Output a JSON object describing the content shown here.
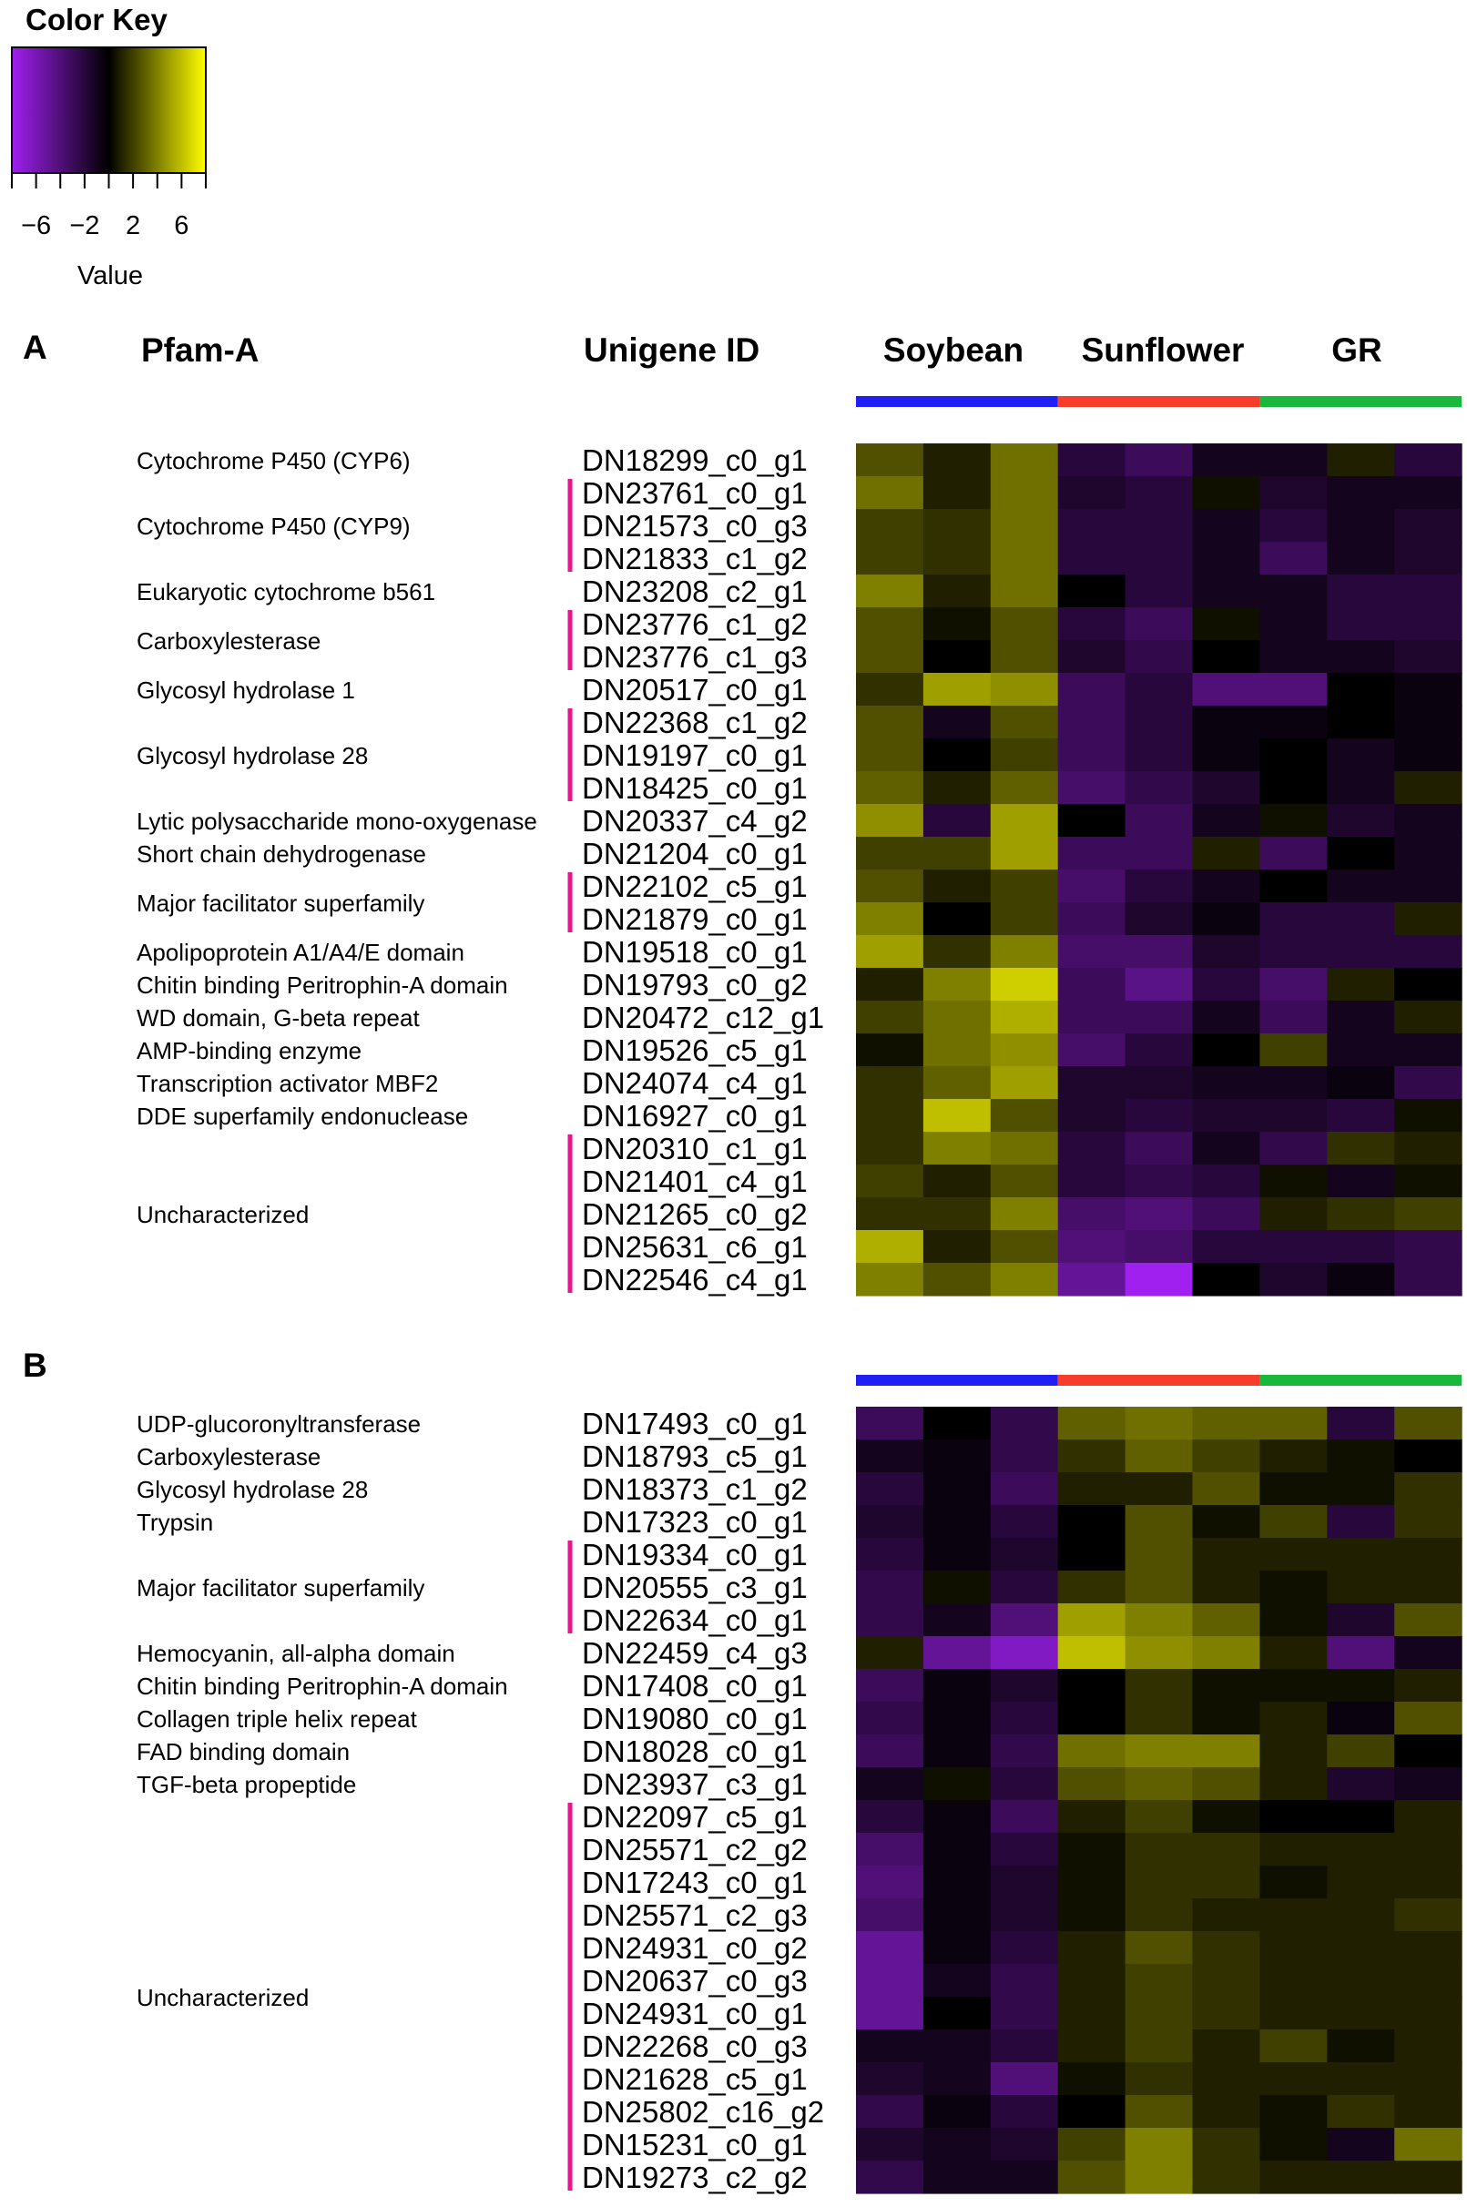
{
  "color_key": {
    "title": "Color Key",
    "xlabel": "Value",
    "range": [
      -8,
      8
    ],
    "tick_labels": [
      "−6",
      "−2",
      "2",
      "6"
    ],
    "tick_values": [
      -6,
      -2,
      2,
      6
    ],
    "low_color": "#a020f0",
    "mid_color": "#000000",
    "high_color": "#ffff00"
  },
  "groups": [
    {
      "name": "Soybean",
      "color": "#1f1ff5"
    },
    {
      "name": "Sunflower",
      "color": "#f53d2a"
    },
    {
      "name": "GR",
      "color": "#18b83a"
    }
  ],
  "bracket_color": "#e8158c",
  "chart_data": [
    {
      "type": "heatmap",
      "panel": "A",
      "column_headers": {
        "pfam": "Pfam-A",
        "unigene": "Unigene ID"
      },
      "columns": [
        "Soybean",
        "Soybean",
        "Soybean",
        "Sunflower",
        "Sunflower",
        "Sunflower",
        "GR",
        "GR",
        "GR"
      ],
      "rows": [
        "DN18299_c0_g1",
        "DN23761_c0_g1",
        "DN21573_c0_g3",
        "DN21833_c1_g2",
        "DN23208_c2_g1",
        "DN23776_c1_g2",
        "DN23776_c1_g3",
        "DN20517_c0_g1",
        "DN22368_c1_g2",
        "DN19197_c0_g1",
        "DN18425_c0_g1",
        "DN20337_c4_g2",
        "DN21204_c0_g1",
        "DN22102_c5_g1",
        "DN21879_c0_g1",
        "DN19518_c0_g1",
        "DN19793_c0_g2",
        "DN20472_c12_g1",
        "DN19526_c5_g1",
        "DN24074_c4_g1",
        "DN16927_c0_g1",
        "DN20310_c1_g1",
        "DN21401_c4_g1",
        "DN21265_c0_g2",
        "DN25631_c6_g1",
        "DN22546_c4_g1"
      ],
      "annotations": [
        {
          "label": "Cytochrome P450 (CYP6)",
          "start": 0,
          "end": 0
        },
        {
          "label": "Cytochrome P450 (CYP9)",
          "start": 1,
          "end": 3
        },
        {
          "label": "Eukaryotic cytochrome b561",
          "start": 4,
          "end": 4
        },
        {
          "label": "Carboxylesterase",
          "start": 5,
          "end": 6
        },
        {
          "label": "Glycosyl hydrolase 1",
          "start": 7,
          "end": 7
        },
        {
          "label": "Glycosyl hydrolase 28",
          "start": 8,
          "end": 10
        },
        {
          "label": "Lytic polysaccharide mono-oxygenase",
          "start": 11,
          "end": 11
        },
        {
          "label": "Short chain dehydrogenase",
          "start": 12,
          "end": 12
        },
        {
          "label": "Major facilitator superfamily",
          "start": 13,
          "end": 14
        },
        {
          "label": "Apolipoprotein A1/A4/E domain",
          "start": 15,
          "end": 15
        },
        {
          "label": "Chitin binding Peritrophin-A domain",
          "start": 16,
          "end": 16
        },
        {
          "label": "WD domain, G-beta repeat",
          "start": 17,
          "end": 17
        },
        {
          "label": "AMP-binding enzyme",
          "start": 18,
          "end": 18
        },
        {
          "label": "Transcription activator MBF2",
          "start": 19,
          "end": 19
        },
        {
          "label": "DDE superfamily endonuclease",
          "start": 20,
          "end": 20
        },
        {
          "label": "Uncharacterized",
          "start": 21,
          "end": 25
        }
      ],
      "values": [
        [
          2.5,
          1,
          3.5,
          -2,
          -3,
          -1,
          -1,
          1,
          -2
        ],
        [
          3.5,
          1,
          3.5,
          -1.5,
          -2,
          0.5,
          -1.5,
          -1,
          -1
        ],
        [
          2,
          1.5,
          3.5,
          -2,
          -2,
          -1,
          -2,
          -1,
          -1.5
        ],
        [
          2,
          1.5,
          3.5,
          -2,
          -2,
          -1,
          -3,
          -1,
          -1.5
        ],
        [
          4,
          1,
          3.5,
          0,
          -2,
          -1,
          -1,
          -2,
          -2
        ],
        [
          2.5,
          0.5,
          2.5,
          -2,
          -3,
          0.5,
          -1,
          -2,
          -2
        ],
        [
          2.5,
          0,
          2.5,
          -1.5,
          -2.5,
          0,
          -1,
          -1,
          -1.5
        ],
        [
          1.5,
          5,
          4.5,
          -3,
          -2,
          -4,
          -4,
          0,
          -0.5
        ],
        [
          2.5,
          -1,
          2.5,
          -3,
          -2,
          -0.5,
          -0.5,
          0,
          -0.5
        ],
        [
          2.5,
          0,
          2,
          -3,
          -2,
          -0.5,
          0,
          -1,
          -0.5
        ],
        [
          3,
          1,
          3,
          -3.5,
          -2.5,
          -1.5,
          0,
          -1,
          1
        ],
        [
          4.5,
          -2,
          5,
          0,
          -3,
          -1,
          0.5,
          -1.5,
          -1
        ],
        [
          2,
          2,
          5,
          -3,
          -3,
          1,
          -3,
          0,
          -1
        ],
        [
          2.5,
          1,
          2,
          -3.5,
          -2,
          -1,
          0,
          -1,
          -1
        ],
        [
          4,
          0,
          2,
          -3,
          -1.5,
          -0.5,
          -2,
          -2,
          1
        ],
        [
          5,
          1.5,
          4,
          -3.5,
          -3.5,
          -1.5,
          -2,
          -2,
          -2
        ],
        [
          1,
          4,
          6.5,
          -3,
          -4.5,
          -2,
          -3.5,
          1,
          0
        ],
        [
          2,
          3.5,
          5.5,
          -3,
          -3,
          -1,
          -3,
          -1,
          1
        ],
        [
          0.5,
          3.5,
          4.5,
          -3.5,
          -2,
          0,
          2,
          -1,
          -1
        ],
        [
          1.5,
          3,
          5,
          -1.5,
          -1.5,
          -1,
          -1,
          -0.5,
          -2.5
        ],
        [
          1.5,
          6,
          2.5,
          -1.5,
          -2,
          -1.5,
          -1.5,
          -2,
          0.5
        ],
        [
          1.5,
          4,
          3.5,
          -2,
          -3,
          -1,
          -2.5,
          1.5,
          1
        ],
        [
          2,
          1,
          2.5,
          -2,
          -2.5,
          -2,
          0.5,
          -1,
          0.5
        ],
        [
          1.5,
          1.5,
          4,
          -3.5,
          -4,
          -3,
          1,
          1.5,
          2
        ],
        [
          5.5,
          1,
          2.5,
          -4,
          -3.5,
          -2,
          -2,
          -2,
          -2.5
        ],
        [
          4,
          2.5,
          4,
          -5,
          -8,
          0,
          -1.5,
          -0.5,
          -2.5
        ]
      ]
    },
    {
      "type": "heatmap",
      "panel": "B",
      "columns": [
        "Soybean",
        "Soybean",
        "Soybean",
        "Sunflower",
        "Sunflower",
        "Sunflower",
        "GR",
        "GR",
        "GR"
      ],
      "rows": [
        "DN17493_c0_g1",
        "DN18793_c5_g1",
        "DN18373_c1_g2",
        "DN17323_c0_g1",
        "DN19334_c0_g1",
        "DN20555_c3_g1",
        "DN22634_c0_g1",
        "DN22459_c4_g3",
        "DN17408_c0_g1",
        "DN19080_c0_g1",
        "DN18028_c0_g1",
        "DN23937_c3_g1",
        "DN22097_c5_g1",
        "DN25571_c2_g2",
        "DN17243_c0_g1",
        "DN25571_c2_g3",
        "DN24931_c0_g2",
        "DN20637_c0_g3",
        "DN24931_c0_g1",
        "DN22268_c0_g3",
        "DN21628_c5_g1",
        "DN25802_c16_g2",
        "DN15231_c0_g1",
        "DN19273_c2_g2"
      ],
      "annotations": [
        {
          "label": "UDP-glucoronyltransferase",
          "start": 0,
          "end": 0
        },
        {
          "label": "Carboxylesterase",
          "start": 1,
          "end": 1
        },
        {
          "label": "Glycosyl hydrolase 28",
          "start": 2,
          "end": 2
        },
        {
          "label": "Trypsin",
          "start": 3,
          "end": 3
        },
        {
          "label": "Major facilitator superfamily",
          "start": 4,
          "end": 6
        },
        {
          "label": "Hemocyanin, all-alpha domain",
          "start": 7,
          "end": 7
        },
        {
          "label": "Chitin binding Peritrophin-A domain",
          "start": 8,
          "end": 8
        },
        {
          "label": "Collagen triple helix repeat",
          "start": 9,
          "end": 9
        },
        {
          "label": "FAD binding domain",
          "start": 10,
          "end": 10
        },
        {
          "label": "TGF-beta propeptide",
          "start": 11,
          "end": 11
        },
        {
          "label": "Uncharacterized",
          "start": 12,
          "end": 23
        }
      ],
      "values": [
        [
          -3,
          0,
          -2.5,
          3,
          3.5,
          3,
          3,
          -2,
          2.5
        ],
        [
          -1,
          -0.5,
          -2.5,
          1.5,
          3,
          2,
          1,
          0.5,
          0
        ],
        [
          -2,
          -0.5,
          -3,
          1,
          1,
          2.5,
          0.5,
          0.5,
          1.5
        ],
        [
          -1.5,
          -0.5,
          -2,
          0,
          2.5,
          0.5,
          2,
          -2,
          1.5
        ],
        [
          -2,
          -0.5,
          -1.5,
          0,
          2.5,
          1,
          1,
          1,
          1
        ],
        [
          -2.5,
          0.5,
          -2,
          1.5,
          2.5,
          1,
          0.5,
          1,
          1
        ],
        [
          -2.5,
          -1,
          -4,
          5,
          4,
          3,
          0.5,
          -1.5,
          2.5
        ],
        [
          1,
          -5,
          -6.5,
          6,
          4.5,
          4,
          1,
          -4,
          -1
        ],
        [
          -3,
          -0.5,
          -1.5,
          0,
          1.5,
          0.5,
          0.5,
          0.5,
          1
        ],
        [
          -2.5,
          -0.5,
          -2,
          0,
          1.5,
          0.5,
          1,
          -0.5,
          2.5
        ],
        [
          -3,
          -0.5,
          -2.5,
          3.5,
          4,
          4,
          1,
          2,
          0
        ],
        [
          -1,
          0.5,
          -2,
          2.5,
          3,
          2.5,
          1,
          -1.5,
          -1
        ],
        [
          -2,
          -0.5,
          -3,
          1,
          2,
          0.5,
          0,
          0,
          1
        ],
        [
          -3.5,
          -0.5,
          -2,
          0.5,
          1.5,
          1.5,
          1,
          1,
          1
        ],
        [
          -4,
          -0.5,
          -1.5,
          0.5,
          1.5,
          1.5,
          0.5,
          1,
          1
        ],
        [
          -3.5,
          -0.5,
          -1.5,
          0.5,
          1.5,
          1,
          1,
          1,
          1.5
        ],
        [
          -5,
          -0.5,
          -2,
          1,
          2.5,
          1.5,
          1,
          1,
          1
        ],
        [
          -5,
          -1,
          -2.5,
          1,
          2,
          1.5,
          1,
          1,
          1
        ],
        [
          -5,
          0,
          -2.5,
          1,
          2,
          1.5,
          1,
          1,
          1
        ],
        [
          -1,
          -1,
          -2,
          1,
          2,
          1,
          2,
          0.5,
          1
        ],
        [
          -1.5,
          -1,
          -4,
          0.5,
          1.5,
          1,
          1,
          1,
          1
        ],
        [
          -2.5,
          -0.5,
          -2,
          0,
          2.5,
          1,
          0.5,
          1.5,
          1
        ],
        [
          -1.5,
          -1,
          -1.5,
          2,
          4,
          1.5,
          0.5,
          -1,
          3.5
        ],
        [
          -2.5,
          -1,
          -1,
          2.5,
          4,
          1.5,
          1,
          1,
          1
        ]
      ]
    }
  ]
}
